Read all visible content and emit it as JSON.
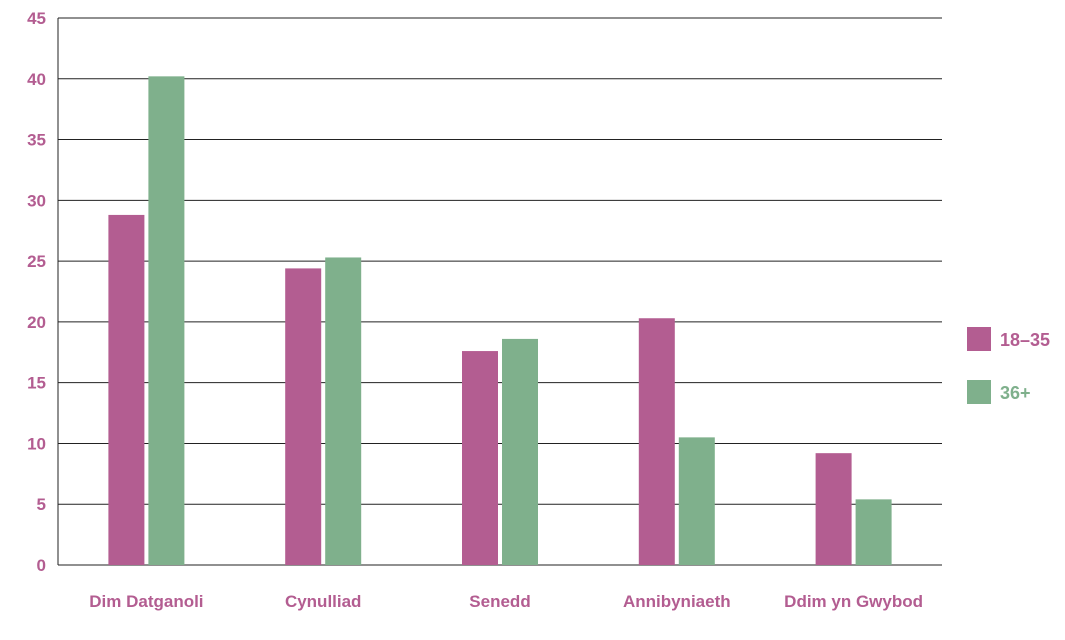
{
  "colors": {
    "series1": "#b35d91",
    "series2": "#7fb08c",
    "text": "#b35d91",
    "grid": "#222222"
  },
  "chart_data": {
    "type": "bar",
    "title": "",
    "xlabel": "",
    "ylabel": "",
    "ylim": [
      0,
      45
    ],
    "yticks": [
      "0",
      "5",
      "10",
      "15",
      "20",
      "25",
      "30",
      "35",
      "40",
      "45"
    ],
    "grid": true,
    "legend_position": "right",
    "categories": [
      "Dim Datganoli",
      "Cynulliad",
      "Senedd",
      "Annibyniaeth",
      "Ddim yn Gwybod"
    ],
    "series": [
      {
        "name": "18–35",
        "values": [
          28.8,
          24.4,
          17.6,
          20.3,
          9.2
        ]
      },
      {
        "name": "36+",
        "values": [
          40.2,
          25.3,
          18.6,
          10.5,
          5.4
        ]
      }
    ]
  }
}
